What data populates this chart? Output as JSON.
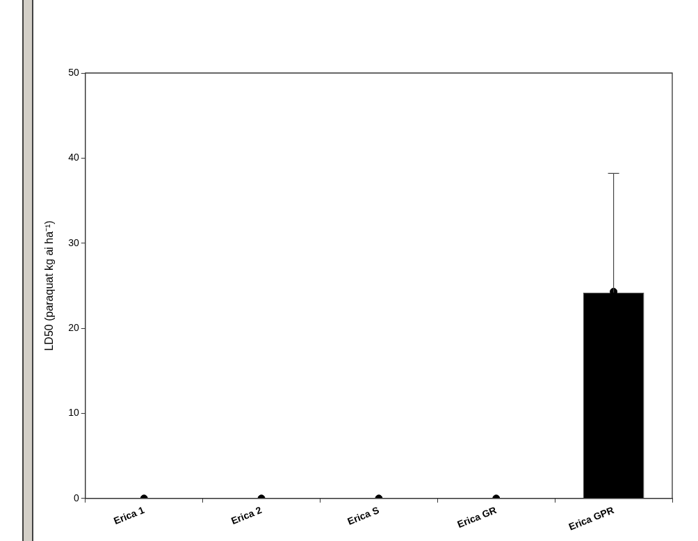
{
  "chart_data": {
    "type": "bar",
    "ylabel": "LD50 (paraquat kg ai ha⁻¹)",
    "categories": [
      "Erica 1",
      "Erica 2",
      "Erica S",
      "Erica GR",
      "Erica GPR"
    ],
    "series": [
      {
        "color": "#000000",
        "values": [
          0,
          0,
          0,
          0,
          24.2
        ],
        "errors": [
          null,
          null,
          null,
          null,
          14.0
        ]
      },
      {
        "type": "scatter",
        "color": "#000000",
        "x": [
          "Erica 1",
          "Erica 2",
          "Erica S",
          "Erica GR",
          "Erica GPR"
        ],
        "values": [
          0,
          0,
          0,
          0,
          24.3
        ]
      }
    ],
    "ylim": [
      0,
      50
    ],
    "yticks": [
      0,
      10,
      20,
      30,
      40,
      50
    ],
    "grid": false,
    "legend": false,
    "marker": "circle"
  }
}
